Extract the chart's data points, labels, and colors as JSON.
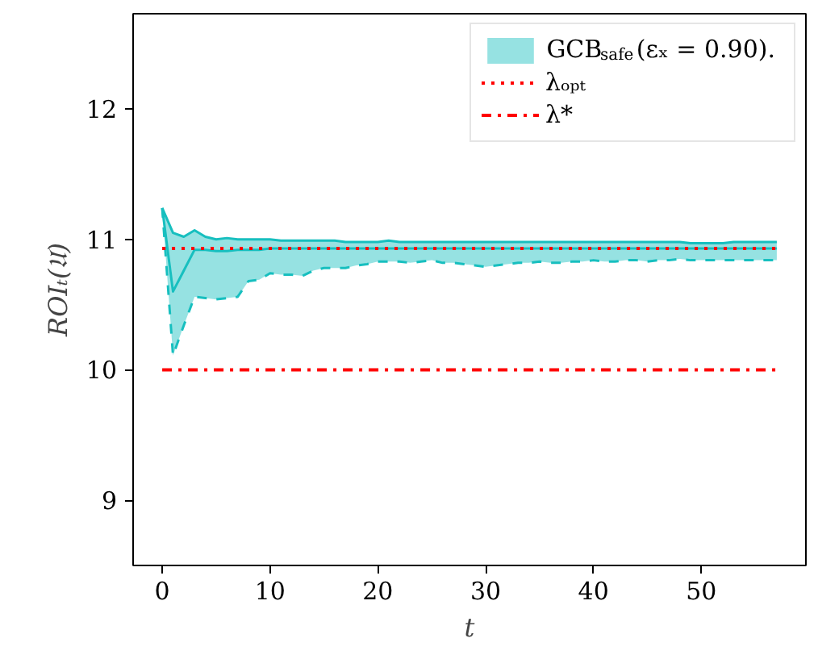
{
  "chart_data": {
    "type": "line",
    "xlabel": "t",
    "ylabel": "ROIₜ(𝔘)",
    "x": [
      0,
      1,
      2,
      3,
      4,
      5,
      6,
      7,
      8,
      9,
      10,
      11,
      12,
      13,
      14,
      15,
      16,
      17,
      18,
      19,
      20,
      21,
      22,
      23,
      24,
      25,
      26,
      27,
      28,
      29,
      30,
      31,
      32,
      33,
      34,
      35,
      36,
      37,
      38,
      39,
      40,
      41,
      42,
      43,
      44,
      45,
      46,
      47,
      48,
      49,
      50,
      51,
      52,
      53,
      54,
      55,
      56,
      57
    ],
    "series": [
      {
        "name": "GCB$_{safe}$(εₓ = 0.90).",
        "color": "#17bfbf",
        "values": [
          11.24,
          10.6,
          10.76,
          10.92,
          10.92,
          10.91,
          10.91,
          10.92,
          10.92,
          10.92,
          10.93,
          10.93,
          10.93,
          10.93,
          10.93,
          10.93,
          10.93,
          10.93,
          10.93,
          10.93,
          10.93,
          10.93,
          10.93,
          10.93,
          10.93,
          10.93,
          10.93,
          10.93,
          10.93,
          10.93,
          10.93,
          10.93,
          10.93,
          10.93,
          10.93,
          10.93,
          10.93,
          10.93,
          10.93,
          10.93,
          10.93,
          10.93,
          10.93,
          10.93,
          10.93,
          10.93,
          10.93,
          10.93,
          10.93,
          10.93,
          10.93,
          10.93,
          10.93,
          10.93,
          10.93,
          10.93,
          10.93,
          10.93
        ],
        "upper": [
          11.24,
          11.05,
          11.02,
          11.07,
          11.02,
          11.0,
          11.01,
          11.0,
          11.0,
          11.0,
          11.0,
          10.99,
          10.99,
          10.99,
          10.99,
          10.99,
          10.99,
          10.98,
          10.98,
          10.98,
          10.98,
          10.99,
          10.98,
          10.98,
          10.98,
          10.98,
          10.98,
          10.98,
          10.98,
          10.98,
          10.98,
          10.98,
          10.98,
          10.98,
          10.98,
          10.98,
          10.98,
          10.98,
          10.98,
          10.98,
          10.98,
          10.98,
          10.98,
          10.98,
          10.98,
          10.98,
          10.98,
          10.98,
          10.98,
          10.97,
          10.97,
          10.97,
          10.97,
          10.98,
          10.98,
          10.98,
          10.98,
          10.98
        ],
        "lower": [
          11.24,
          10.11,
          10.34,
          10.56,
          10.55,
          10.54,
          10.55,
          10.56,
          10.68,
          10.69,
          10.74,
          10.73,
          10.73,
          10.72,
          10.76,
          10.78,
          10.78,
          10.78,
          10.8,
          10.81,
          10.83,
          10.83,
          10.83,
          10.82,
          10.83,
          10.84,
          10.82,
          10.82,
          10.81,
          10.8,
          10.79,
          10.8,
          10.81,
          10.82,
          10.82,
          10.83,
          10.82,
          10.82,
          10.83,
          10.83,
          10.84,
          10.83,
          10.83,
          10.84,
          10.84,
          10.83,
          10.84,
          10.84,
          10.85,
          10.84,
          10.84,
          10.84,
          10.84,
          10.84,
          10.84,
          10.84,
          10.84,
          10.84
        ]
      },
      {
        "color": "#17bfbf",
        "values": [
          11.24,
          11.05,
          11.02,
          11.07,
          11.02,
          11.0,
          11.01,
          11.0,
          11.0,
          11.0,
          11.0,
          10.99,
          10.99,
          10.99,
          10.99,
          10.99,
          10.99,
          10.98,
          10.98,
          10.98,
          10.98,
          10.99,
          10.98,
          10.98,
          10.98,
          10.98,
          10.98,
          10.98,
          10.98,
          10.98,
          10.98,
          10.98,
          10.98,
          10.98,
          10.98,
          10.98,
          10.98,
          10.98,
          10.98,
          10.98,
          10.98,
          10.98,
          10.98,
          10.98,
          10.98,
          10.98,
          10.98,
          10.98,
          10.98,
          10.97,
          10.97,
          10.97,
          10.97,
          10.98,
          10.98,
          10.98,
          10.98,
          10.98
        ]
      },
      {
        "color": "#17bfbf",
        "line_style": "dashed",
        "values": [
          11.24,
          10.11,
          10.34,
          10.56,
          10.55,
          10.54,
          10.55,
          10.56,
          10.68,
          10.69,
          10.74,
          10.73,
          10.73,
          10.72,
          10.76,
          10.78,
          10.78,
          10.78,
          10.8,
          10.81,
          10.83,
          10.83,
          10.83,
          10.82,
          10.83,
          10.84,
          10.82,
          10.82,
          10.81,
          10.8,
          10.79,
          10.8,
          10.81,
          10.82,
          10.82,
          10.83,
          10.82,
          10.82,
          10.83,
          10.83,
          10.84,
          10.83,
          10.83,
          10.84,
          10.84,
          10.83,
          10.84,
          10.84,
          10.85,
          10.84,
          10.84,
          10.84,
          10.84,
          10.84,
          10.84,
          10.84,
          10.84,
          10.84
        ]
      }
    ],
    "ref_lines": [
      {
        "axis": "y",
        "value": 10.93,
        "label": "λₒₚₜ",
        "color": "#ff0000",
        "line_style": "dotted"
      },
      {
        "axis": "y",
        "value": 10.0,
        "label": "λ*",
        "color": "#ff0000",
        "line_style": "dashdot"
      }
    ],
    "xlim": [
      -2.7,
      59.7
    ],
    "ylim": [
      8.5,
      12.73
    ],
    "xticks": [
      0,
      10,
      20,
      30,
      40,
      50
    ],
    "yticks": [
      9,
      10,
      11,
      12
    ],
    "grid": false,
    "legend": "top right"
  }
}
